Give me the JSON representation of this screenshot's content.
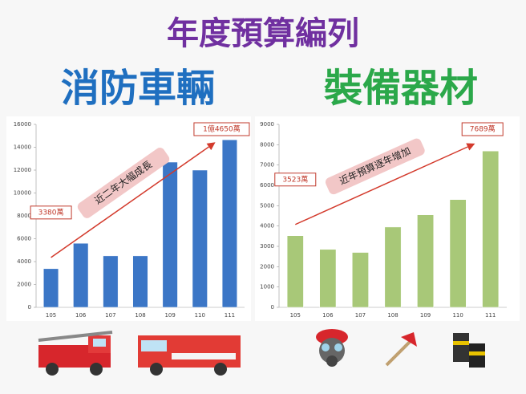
{
  "header": {
    "title": "年度預算編列"
  },
  "chart_data": [
    {
      "type": "bar",
      "title": "消防車輛",
      "title_color": "#1f6fc0",
      "categories": [
        "105",
        "106",
        "107",
        "108",
        "109",
        "110",
        "111"
      ],
      "values": [
        3380,
        5600,
        4500,
        4500,
        12700,
        12000,
        14650
      ],
      "value_labels": [
        "3380萬",
        null,
        null,
        null,
        null,
        null,
        "1億4650萬"
      ],
      "color": "#3b76c6",
      "ylim": [
        0,
        16000
      ],
      "yticks": [
        0,
        2000,
        4000,
        6000,
        8000,
        10000,
        12000,
        14000,
        16000
      ],
      "annotation": "近二年大幅成長"
    },
    {
      "type": "bar",
      "title": "裝備器材",
      "title_color": "#2ba84a",
      "categories": [
        "105",
        "106",
        "107",
        "108",
        "109",
        "110",
        "111"
      ],
      "values": [
        3523,
        2850,
        2700,
        3950,
        4550,
        5300,
        7689
      ],
      "value_labels": [
        "3523萬",
        null,
        null,
        null,
        null,
        null,
        "7689萬"
      ],
      "color": "#a8c878",
      "ylim": [
        0,
        9000
      ],
      "yticks": [
        0,
        1000,
        2000,
        3000,
        4000,
        5000,
        6000,
        7000,
        8000,
        9000
      ],
      "annotation": "近年預算逐年增加"
    }
  ]
}
